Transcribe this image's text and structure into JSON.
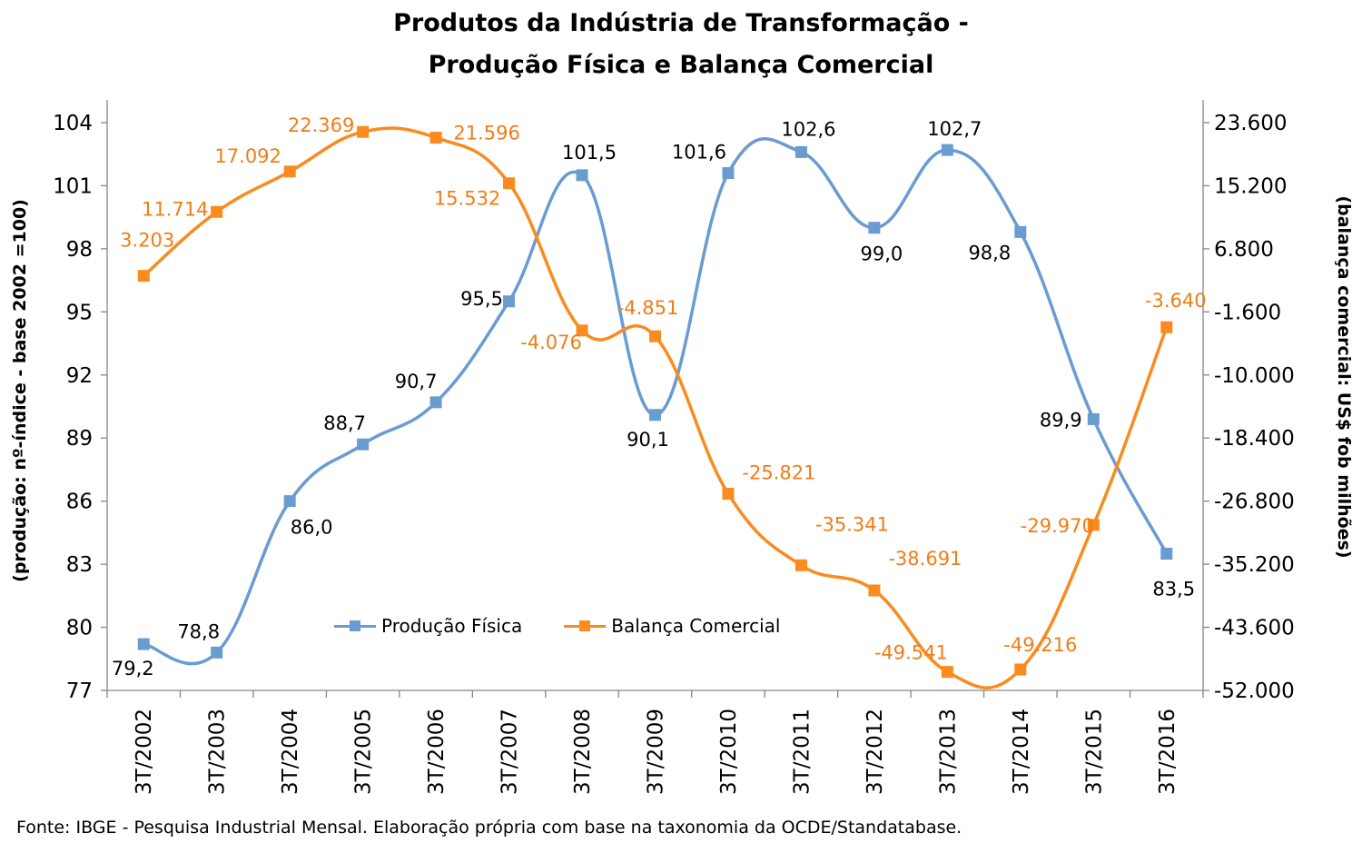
{
  "chart_data": {
    "type": "line",
    "title": "Produtos da Indústria de Transformação -",
    "subtitle": "Produção Física e Balança Comercial",
    "categories": [
      "3T/2002",
      "3T/2003",
      "3T/2004",
      "3T/2005",
      "3T/2006",
      "3T/2007",
      "3T/2008",
      "3T/2009",
      "3T/2010",
      "3T/2011",
      "3T/2012",
      "3T/2013",
      "3T/2014",
      "3T/2015",
      "3T/2016"
    ],
    "ylabel_left": "(produção: nº-índice - base 2002 =100)",
    "ylabel_right": "(balança comercial: US$ fob milhões)",
    "y_left": {
      "min": 77,
      "max": 104,
      "ticks": [
        77,
        80,
        83,
        86,
        89,
        92,
        95,
        98,
        101,
        104
      ]
    },
    "y_left_ticklabels": [
      "77",
      "80",
      "83",
      "86",
      "89",
      "92",
      "95",
      "98",
      "101",
      "104"
    ],
    "y_right": {
      "min": -52000,
      "max": 23600,
      "ticks": [
        -52000,
        -43600,
        -35200,
        -26800,
        -18400,
        -10000,
        -1600,
        6800,
        15200,
        23600
      ]
    },
    "y_right_ticklabels": [
      "-52.000",
      "-43.600",
      "-35.200",
      "-26.800",
      "-18.400",
      "-10.000",
      "-1.600",
      "6.800",
      "15.200",
      "23.600"
    ],
    "series": [
      {
        "name": "Produção Física",
        "axis": "left",
        "color": "#6a9bd1",
        "values": [
          79.2,
          78.8,
          86.0,
          88.7,
          90.7,
          95.5,
          101.5,
          90.1,
          101.6,
          102.6,
          99.0,
          102.7,
          98.8,
          89.9,
          83.5
        ],
        "labels": [
          "79,2",
          "78,8",
          "86,0",
          "88,7",
          "90,7",
          "95,5",
          "101,5",
          "90,1",
          "101,6",
          "102,6",
          "99,0",
          "102,7",
          "98,8",
          "89,9",
          "83,5"
        ]
      },
      {
        "name": "Balança Comercial",
        "axis": "right",
        "color": "#f98b1f",
        "values": [
          3203,
          11714,
          17092,
          22369,
          21596,
          15532,
          -4076,
          -4851,
          -25821,
          -35341,
          -38691,
          -49541,
          -49216,
          -29970,
          -3640
        ],
        "labels": [
          "3.203",
          "11.714",
          "17.092",
          "22.369",
          "21.596",
          "15.532",
          "-4.076",
          "-4.851",
          "-25.821",
          "-35.341",
          "-38.691",
          "-49.541",
          "-49.216",
          "-29.970",
          "-3.640"
        ]
      }
    ],
    "legend_position": "inside-bottom-center",
    "grid": false
  },
  "source": "Fonte:  IBGE - Pesquisa Industrial Mensal. Elaboração própria com base na taxonomia da OCDE/Standatabase."
}
